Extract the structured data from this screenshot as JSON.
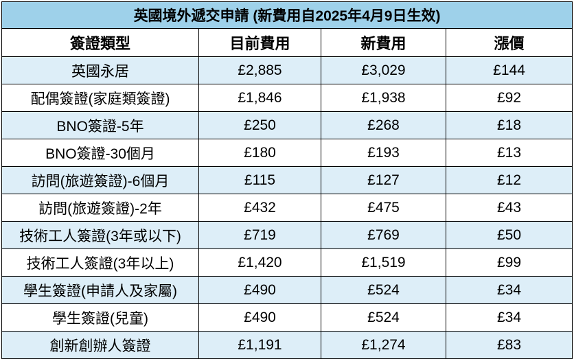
{
  "table": {
    "title": "英國境外遞交申請 (新費用自2025年4月9日生效)",
    "headers": [
      "簽證類型",
      "目前費用",
      "新費用",
      "漲價"
    ],
    "rows": [
      [
        "英國永居",
        "£2,885",
        "£3,029",
        "£144"
      ],
      [
        "配偶簽證(家庭類簽證)",
        "£1,846",
        "£1,938",
        "£92"
      ],
      [
        "BNO簽證-5年",
        "£250",
        "£268",
        "£18"
      ],
      [
        "BNO簽證-30個月",
        "£180",
        "£193",
        "£13"
      ],
      [
        "訪問(旅遊簽證)-6個月",
        "£115",
        "£127",
        "£12"
      ],
      [
        "訪問(旅遊簽證)-2年",
        "£432",
        "£475",
        "£43"
      ],
      [
        "技術工人簽證(3年或以下)",
        "£719",
        "£769",
        "£50"
      ],
      [
        "技術工人簽證(3年以上)",
        "£1,420",
        "£1,519",
        "£99"
      ],
      [
        "學生簽證(申請人及家屬)",
        "£490",
        "£524",
        "£34"
      ],
      [
        "學生簽證(兒童)",
        "£490",
        "£524",
        "£34"
      ],
      [
        "創新創辦人簽證",
        "£1,191",
        "£1,274",
        "£83"
      ]
    ]
  },
  "colors": {
    "title_bg": "#9ed1ea",
    "stripe_bg": "#ddeef8",
    "border": "#000000"
  }
}
